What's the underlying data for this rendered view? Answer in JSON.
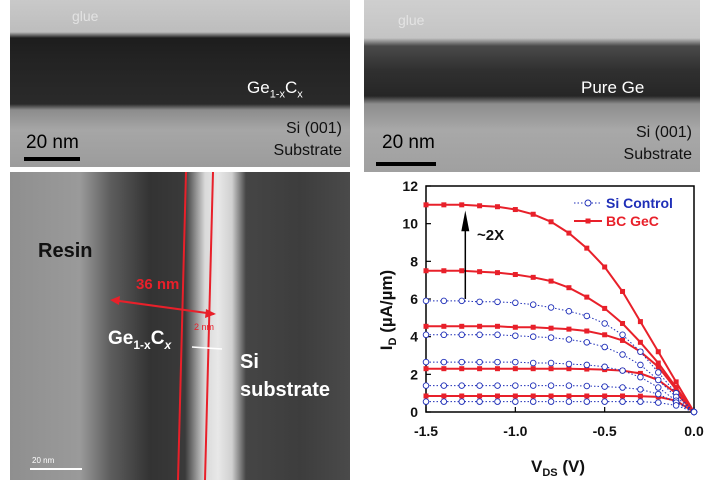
{
  "panel_a": {
    "glue": "glue",
    "layer_base": "Ge",
    "layer_sub": "1-x",
    "layer_base2": "C",
    "layer_sub2": "x",
    "substrate_line1": "Si (001)",
    "substrate_line2": "Substrate",
    "scale": "20 nm"
  },
  "panel_b": {
    "glue": "glue",
    "layer": "Pure Ge",
    "substrate_line1": "Si (001)",
    "substrate_line2": "Substrate",
    "scale": "20 nm"
  },
  "panel_c": {
    "resin": "Resin",
    "layer_base": "Ge",
    "layer_sub": "1-x",
    "layer_base2": "C",
    "layer_sub2": "x",
    "substrate_line1": "Si",
    "substrate_line2": "substrate",
    "width_36": "36 nm",
    "width_2": "2 nm",
    "scale": "20 nm"
  },
  "chart_data": {
    "type": "line",
    "xlabel_main": "V",
    "xlabel_sub": "DS",
    "xlabel_unit": " (V)",
    "ylabel_main": "I",
    "ylabel_sub": "D",
    "ylabel_unit": " (µA/µm)",
    "xlim": [
      -1.5,
      0.0
    ],
    "ylim": [
      0,
      12
    ],
    "xticks": [
      "-1.5",
      "-1.0",
      "-0.5",
      "0.0"
    ],
    "yticks": [
      "0",
      "2",
      "4",
      "6",
      "8",
      "10",
      "12"
    ],
    "annotation": "~2X",
    "legend_position": "top-right",
    "legend": [
      {
        "name": "Si Control",
        "color": "#1f2fb8"
      },
      {
        "name": "BC GeC",
        "color": "#e8202a"
      }
    ],
    "series": [
      {
        "name": "BC GeC",
        "color": "#e8202a",
        "style": "solid-square",
        "curves": [
          {
            "x": [
              -1.5,
              -1.4,
              -1.3,
              -1.2,
              -1.1,
              -1.0,
              -0.9,
              -0.8,
              -0.7,
              -0.6,
              -0.5,
              -0.4,
              -0.3,
              -0.2,
              -0.1,
              0.0
            ],
            "y": [
              11.0,
              11.0,
              11.0,
              10.95,
              10.9,
              10.75,
              10.5,
              10.1,
              9.5,
              8.7,
              7.7,
              6.4,
              4.8,
              3.2,
              1.6,
              0.0
            ]
          },
          {
            "x": [
              -1.5,
              -1.4,
              -1.3,
              -1.2,
              -1.1,
              -1.0,
              -0.9,
              -0.8,
              -0.7,
              -0.6,
              -0.5,
              -0.4,
              -0.3,
              -0.2,
              -0.1,
              0.0
            ],
            "y": [
              7.5,
              7.5,
              7.5,
              7.45,
              7.4,
              7.3,
              7.15,
              6.95,
              6.6,
              6.1,
              5.5,
              4.7,
              3.7,
              2.6,
              1.3,
              0.0
            ]
          },
          {
            "x": [
              -1.5,
              -1.4,
              -1.3,
              -1.2,
              -1.1,
              -1.0,
              -0.9,
              -0.8,
              -0.7,
              -0.6,
              -0.5,
              -0.4,
              -0.3,
              -0.2,
              -0.1,
              0.0
            ],
            "y": [
              4.55,
              4.55,
              4.55,
              4.55,
              4.55,
              4.5,
              4.5,
              4.45,
              4.4,
              4.3,
              4.1,
              3.8,
              3.2,
              2.4,
              1.2,
              0.0
            ]
          },
          {
            "x": [
              -1.5,
              -1.4,
              -1.3,
              -1.2,
              -1.1,
              -1.0,
              -0.9,
              -0.8,
              -0.7,
              -0.6,
              -0.5,
              -0.4,
              -0.3,
              -0.2,
              -0.1,
              0.0
            ],
            "y": [
              2.3,
              2.3,
              2.3,
              2.3,
              2.3,
              2.3,
              2.3,
              2.3,
              2.3,
              2.28,
              2.25,
              2.2,
              2.05,
              1.7,
              1.0,
              0.0
            ]
          },
          {
            "x": [
              -1.5,
              -1.4,
              -1.3,
              -1.2,
              -1.1,
              -1.0,
              -0.9,
              -0.8,
              -0.7,
              -0.6,
              -0.5,
              -0.4,
              -0.3,
              -0.2,
              -0.1,
              0.0
            ],
            "y": [
              0.85,
              0.85,
              0.85,
              0.85,
              0.85,
              0.85,
              0.85,
              0.85,
              0.85,
              0.85,
              0.85,
              0.85,
              0.84,
              0.8,
              0.6,
              0.0
            ]
          }
        ]
      },
      {
        "name": "Si Control",
        "color": "#1f2fb8",
        "style": "dotted-circle",
        "curves": [
          {
            "x": [
              -1.5,
              -1.4,
              -1.3,
              -1.2,
              -1.1,
              -1.0,
              -0.9,
              -0.8,
              -0.7,
              -0.6,
              -0.5,
              -0.4,
              -0.3,
              -0.2,
              -0.1,
              0.0
            ],
            "y": [
              5.9,
              5.9,
              5.9,
              5.85,
              5.85,
              5.8,
              5.7,
              5.55,
              5.35,
              5.1,
              4.7,
              4.1,
              3.2,
              2.1,
              1.0,
              0.0
            ]
          },
          {
            "x": [
              -1.5,
              -1.4,
              -1.3,
              -1.2,
              -1.1,
              -1.0,
              -0.9,
              -0.8,
              -0.7,
              -0.6,
              -0.5,
              -0.4,
              -0.3,
              -0.2,
              -0.1,
              0.0
            ],
            "y": [
              4.1,
              4.1,
              4.1,
              4.1,
              4.1,
              4.05,
              4.0,
              3.95,
              3.85,
              3.7,
              3.45,
              3.05,
              2.5,
              1.7,
              0.8,
              0.0
            ]
          },
          {
            "x": [
              -1.5,
              -1.4,
              -1.3,
              -1.2,
              -1.1,
              -1.0,
              -0.9,
              -0.8,
              -0.7,
              -0.6,
              -0.5,
              -0.4,
              -0.3,
              -0.2,
              -0.1,
              0.0
            ],
            "y": [
              2.65,
              2.65,
              2.65,
              2.65,
              2.65,
              2.65,
              2.6,
              2.6,
              2.55,
              2.5,
              2.4,
              2.2,
              1.85,
              1.3,
              0.6,
              0.0
            ]
          },
          {
            "x": [
              -1.5,
              -1.4,
              -1.3,
              -1.2,
              -1.1,
              -1.0,
              -0.9,
              -0.8,
              -0.7,
              -0.6,
              -0.5,
              -0.4,
              -0.3,
              -0.2,
              -0.1,
              0.0
            ],
            "y": [
              1.4,
              1.4,
              1.4,
              1.4,
              1.4,
              1.4,
              1.4,
              1.4,
              1.4,
              1.38,
              1.35,
              1.3,
              1.2,
              0.95,
              0.5,
              0.0
            ]
          },
          {
            "x": [
              -1.5,
              -1.4,
              -1.3,
              -1.2,
              -1.1,
              -1.0,
              -0.9,
              -0.8,
              -0.7,
              -0.6,
              -0.5,
              -0.4,
              -0.3,
              -0.2,
              -0.1,
              0.0
            ],
            "y": [
              0.55,
              0.55,
              0.55,
              0.55,
              0.55,
              0.55,
              0.55,
              0.55,
              0.55,
              0.55,
              0.55,
              0.55,
              0.55,
              0.5,
              0.35,
              0.0
            ]
          }
        ]
      }
    ]
  }
}
